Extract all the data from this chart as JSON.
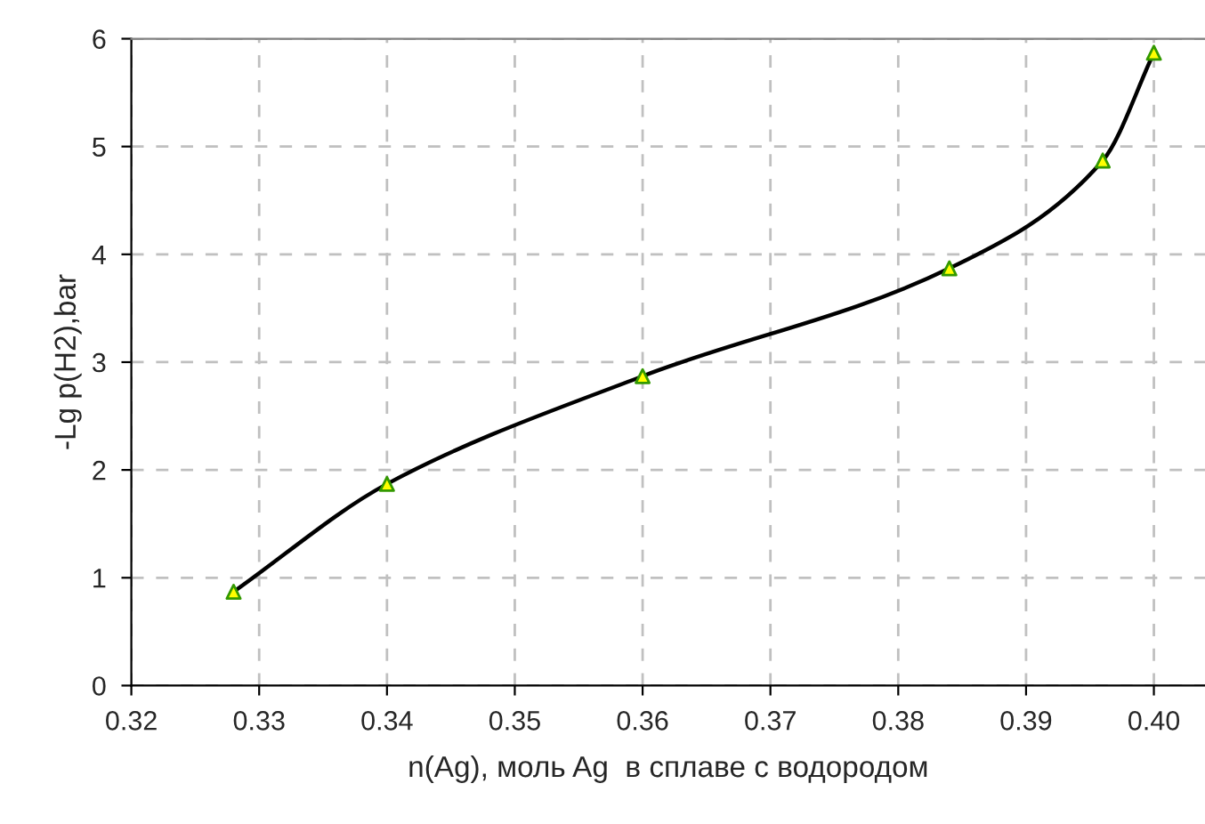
{
  "chart_data": {
    "type": "line",
    "xlabel": "n(Ag), моль Ag  в сплаве с водородом",
    "ylabel": "-Lg p(H2),bar",
    "x": [
      0.328,
      0.34,
      0.36,
      0.384,
      0.396,
      0.4
    ],
    "series": [
      {
        "color": "#000000",
        "colors": [
          "#ffff00",
          "#ffff00",
          "#ffff00",
          "#ffff00",
          "#ffff00",
          "#ffff00"
        ],
        "values": [
          0.87,
          1.87,
          2.87,
          3.87,
          4.87,
          5.87
        ]
      }
    ],
    "xlim": [
      0.32,
      0.404
    ],
    "ylim": [
      0,
      6
    ],
    "xticks": [
      {
        "value": 0.32,
        "label": "0.32"
      },
      {
        "value": 0.33,
        "label": "0.33"
      },
      {
        "value": 0.34,
        "label": "0.34"
      },
      {
        "value": 0.35,
        "label": "0.35"
      },
      {
        "value": 0.36,
        "label": "0.36"
      },
      {
        "value": 0.37,
        "label": "0.37"
      },
      {
        "value": 0.38,
        "label": "0.38"
      },
      {
        "value": 0.39,
        "label": "0.39"
      },
      {
        "value": 0.4,
        "label": "0.40"
      }
    ],
    "yticks": [
      0,
      1,
      2,
      3,
      4,
      5,
      6
    ],
    "grid": true,
    "marker": "triangle",
    "line_style": "solid",
    "legend": false
  }
}
